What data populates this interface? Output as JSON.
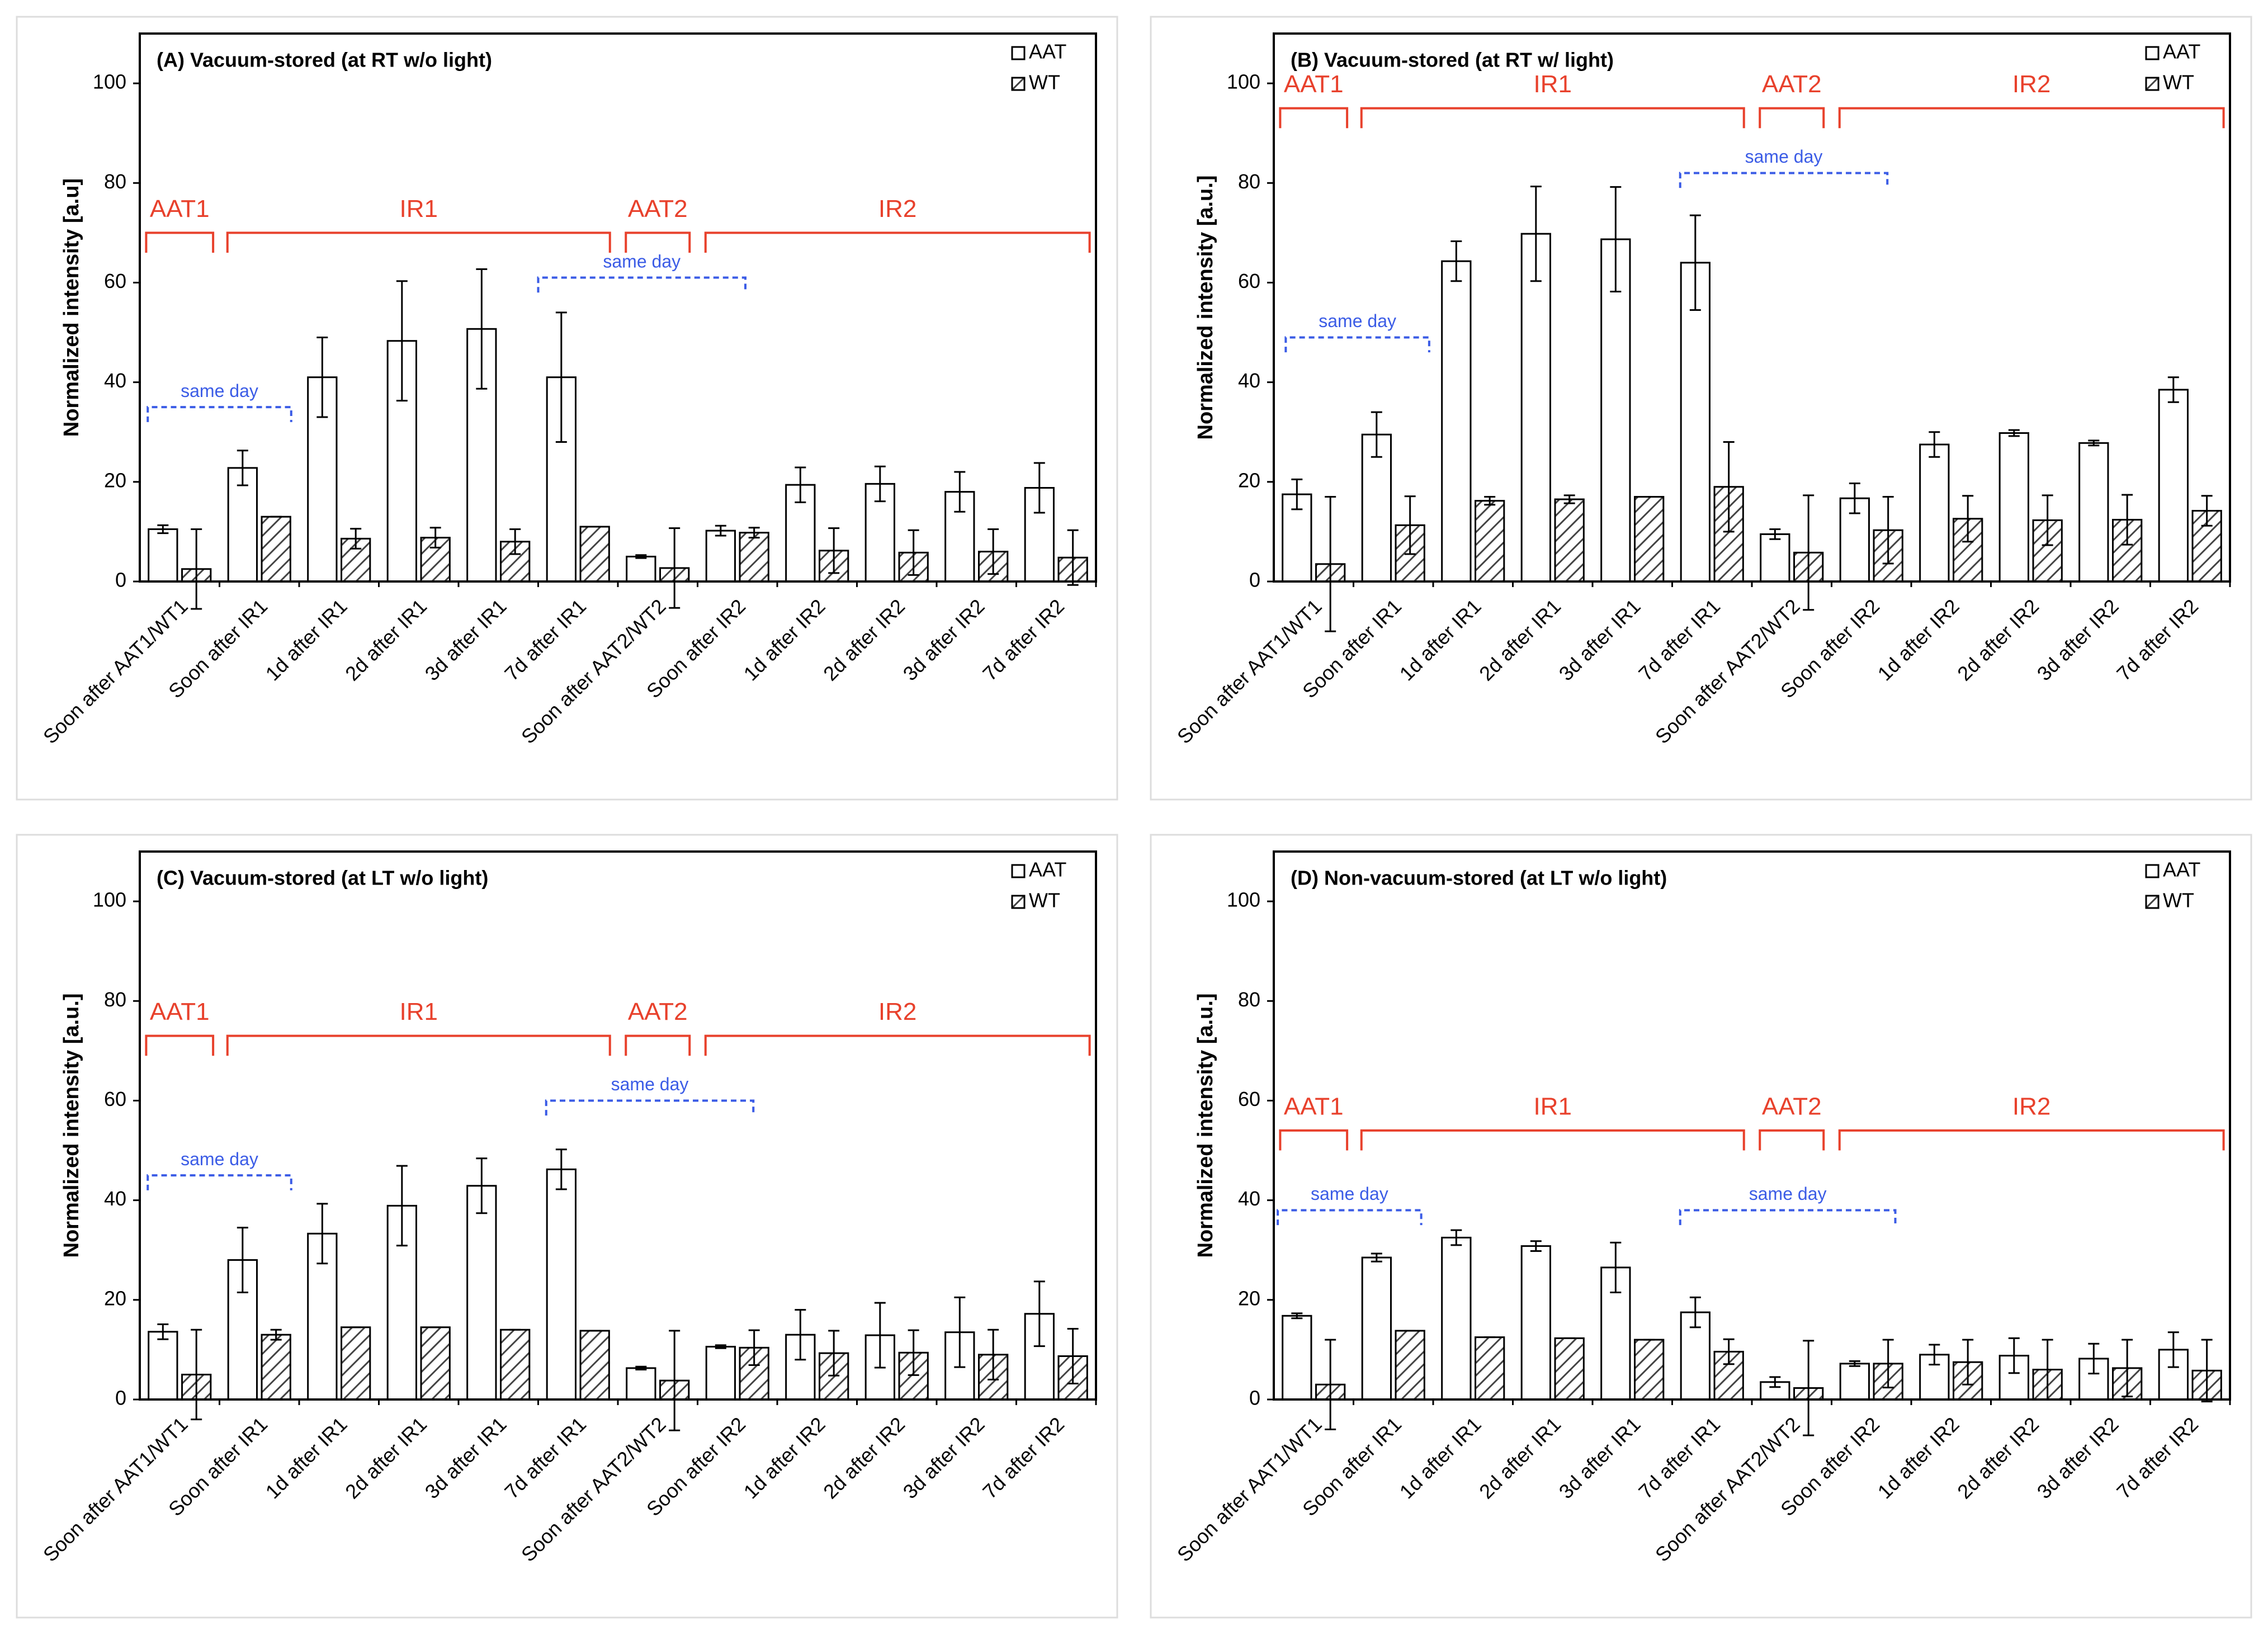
{
  "chart_data": [
    {
      "type": "bar",
      "title": "(A) Vacuum-stored (at RT w/o light)",
      "y_label": "Normalized intensity [a.u]",
      "categories": [
        "Soon after AAT1/WT1",
        "Soon after IR1",
        "1d after IR1",
        "2d after IR1",
        "3d after IR1",
        "7d after IR1",
        "Soon after AAT2/WT2",
        "Soon after IR2",
        "1d after IR2",
        "2d after IR2",
        "3d after IR2",
        "7d after IR2"
      ],
      "series": [
        {
          "name": "AAT",
          "color": "#ffffff",
          "pattern": "solid",
          "values": [
            10.5,
            22.8,
            41,
            48.3,
            50.7,
            41,
            5,
            10.2,
            19.4,
            19.6,
            18,
            18.8
          ],
          "errors": [
            0.8,
            3.5,
            8,
            12,
            12,
            13,
            0.3,
            1,
            3.5,
            3.5,
            4,
            5
          ]
        },
        {
          "name": "WT",
          "color": "#444444",
          "pattern": "hatch",
          "values": [
            2.5,
            13,
            8.6,
            8.8,
            8,
            11,
            2.7,
            9.8,
            6.2,
            5.8,
            6,
            4.8
          ],
          "errors": [
            8,
            0,
            2,
            2,
            2.5,
            0,
            8,
            1,
            4.5,
            4.5,
            4.5,
            5.5
          ]
        }
      ],
      "group_labels": [
        "AAT1",
        "IR1",
        "AAT2",
        "IR2"
      ],
      "same_day_labels": [
        "same day",
        "same day"
      ],
      "ylim": [
        0,
        110
      ],
      "yticks": [
        0,
        20,
        40,
        60,
        80,
        100
      ],
      "legend": "top-right"
    },
    {
      "type": "bar",
      "title": "(B) Vacuum-stored (at RT w/ light)",
      "y_label": "Normalized intensity [a.u.]",
      "categories": [
        "Soon after AAT1/WT1",
        "Soon after IR1",
        "1d after IR1",
        "2d after IR1",
        "3d after IR1",
        "7d after IR1",
        "Soon after AAT2/WT2",
        "Soon after IR2",
        "1d after IR2",
        "2d after IR2",
        "3d after IR2",
        "7d after IR2"
      ],
      "series": [
        {
          "name": "AAT",
          "color": "#ffffff",
          "pattern": "solid",
          "values": [
            17.5,
            29.5,
            64.3,
            69.8,
            68.7,
            64,
            9.5,
            16.7,
            27.5,
            29.8,
            27.8,
            38.5
          ],
          "errors": [
            3,
            4.5,
            4,
            9.5,
            10.5,
            9.5,
            1,
            3,
            2.5,
            0.6,
            0.5,
            2.5
          ]
        },
        {
          "name": "WT",
          "color": "#444444",
          "pattern": "hatch",
          "values": [
            3.5,
            11.3,
            16.2,
            16.5,
            17,
            19,
            5.8,
            10.3,
            12.6,
            12.3,
            12.4,
            14.2
          ],
          "errors": [
            13.5,
            5.8,
            0.8,
            0.8,
            0,
            9,
            11.5,
            6.7,
            4.6,
            5,
            5,
            3
          ]
        }
      ],
      "group_labels": [
        "AAT1",
        "IR1",
        "AAT2",
        "IR2"
      ],
      "same_day_labels": [
        "same day",
        "same day"
      ],
      "ylim": [
        0,
        110
      ],
      "yticks": [
        0,
        20,
        40,
        60,
        80,
        100
      ],
      "legend": "top-right"
    },
    {
      "type": "bar",
      "title": "(C) Vacuum-stored (at LT w/o light)",
      "y_label": "Normalized intensity [a.u.]",
      "categories": [
        "Soon after AAT1/WT1",
        "Soon after IR1",
        "1d after IR1",
        "2d after IR1",
        "3d after IR1",
        "7d after IR1",
        "Soon after AAT2/WT2",
        "Soon after IR2",
        "1d after IR2",
        "2d after IR2",
        "3d after IR2",
        "7d after IR2"
      ],
      "series": [
        {
          "name": "AAT",
          "color": "#ffffff",
          "pattern": "solid",
          "values": [
            13.6,
            28,
            33.3,
            38.9,
            42.9,
            46.2,
            6.3,
            10.6,
            13,
            12.9,
            13.5,
            17.2
          ],
          "errors": [
            1.5,
            6.5,
            6,
            8,
            5.5,
            4,
            0.3,
            0.3,
            5,
            6.5,
            7,
            6.5
          ]
        },
        {
          "name": "WT",
          "color": "#444444",
          "pattern": "hatch",
          "values": [
            5,
            13,
            14.5,
            14.5,
            14,
            13.8,
            3.8,
            10.4,
            9.3,
            9.4,
            9,
            8.7
          ],
          "errors": [
            9,
            1,
            0,
            0,
            0,
            0,
            10,
            3.5,
            4.5,
            4.5,
            5,
            5.5
          ]
        }
      ],
      "group_labels": [
        "AAT1",
        "IR1",
        "AAT2",
        "IR2"
      ],
      "same_day_labels": [
        "same day",
        "same day"
      ],
      "ylim": [
        0,
        110
      ],
      "yticks": [
        0,
        20,
        40,
        60,
        80,
        100
      ],
      "legend": "top-right"
    },
    {
      "type": "bar",
      "title": "(D) Non-vacuum-stored (at LT w/o light)",
      "y_label": "Normalized intensity [a.u.]",
      "categories": [
        "Soon after AAT1/WT1",
        "Soon after IR1",
        "1d after IR1",
        "2d after IR1",
        "3d after IR1",
        "7d after IR1",
        "Soon after AAT2/WT2",
        "Soon after IR2",
        "1d after IR2",
        "2d after IR2",
        "3d after IR2",
        "7d after IR2"
      ],
      "series": [
        {
          "name": "AAT",
          "color": "#ffffff",
          "pattern": "solid",
          "values": [
            16.8,
            28.5,
            32.5,
            30.8,
            26.5,
            17.5,
            3.5,
            7.2,
            9,
            8.8,
            8.2,
            10
          ],
          "errors": [
            0.5,
            0.8,
            1.5,
            1,
            5,
            3,
            1,
            0.5,
            2,
            3.5,
            3,
            3.5
          ]
        },
        {
          "name": "WT",
          "color": "#444444",
          "pattern": "hatch",
          "values": [
            3,
            13.8,
            12.5,
            12.3,
            12,
            9.6,
            2.3,
            7.2,
            7.5,
            6,
            6.3,
            5.8
          ],
          "errors": [
            9,
            0,
            0,
            0,
            0,
            2.5,
            9.5,
            4.8,
            4.5,
            6,
            5.7,
            6.2
          ]
        }
      ],
      "group_labels": [
        "AAT1",
        "IR1",
        "AAT2",
        "IR2"
      ],
      "same_day_labels": [
        "same day",
        "same day"
      ],
      "ylim": [
        0,
        110
      ],
      "yticks": [
        0,
        20,
        40,
        60,
        80,
        100
      ],
      "legend": "top-right"
    }
  ]
}
